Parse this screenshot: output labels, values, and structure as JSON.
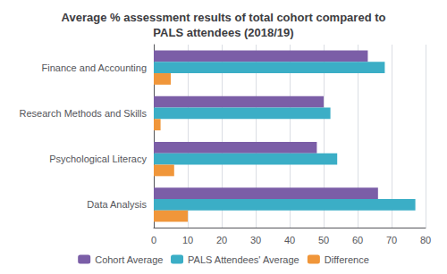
{
  "chart_data": {
    "type": "bar",
    "orientation": "horizontal",
    "title": "Average % assessment results of total cohort compared to\nPALS attendees (2018/19)",
    "categories": [
      "Finance and Accounting",
      "Research Methods and Skills",
      "Psychological Literacy",
      "Data Analysis"
    ],
    "series": [
      {
        "name": "Cohort Average",
        "color": "#7B5EA7",
        "values": [
          63,
          50,
          48,
          66
        ]
      },
      {
        "name": "PALS Attendees' Average",
        "color": "#3BAEC6",
        "values": [
          68,
          52,
          54,
          77
        ]
      },
      {
        "name": "Difference",
        "color": "#F0963A",
        "values": [
          5,
          2,
          6,
          10
        ]
      }
    ],
    "xlim": [
      0,
      80
    ],
    "xticks": [
      0,
      10,
      20,
      30,
      40,
      50,
      60,
      70,
      80
    ],
    "grid": true,
    "legend": "bottom"
  }
}
